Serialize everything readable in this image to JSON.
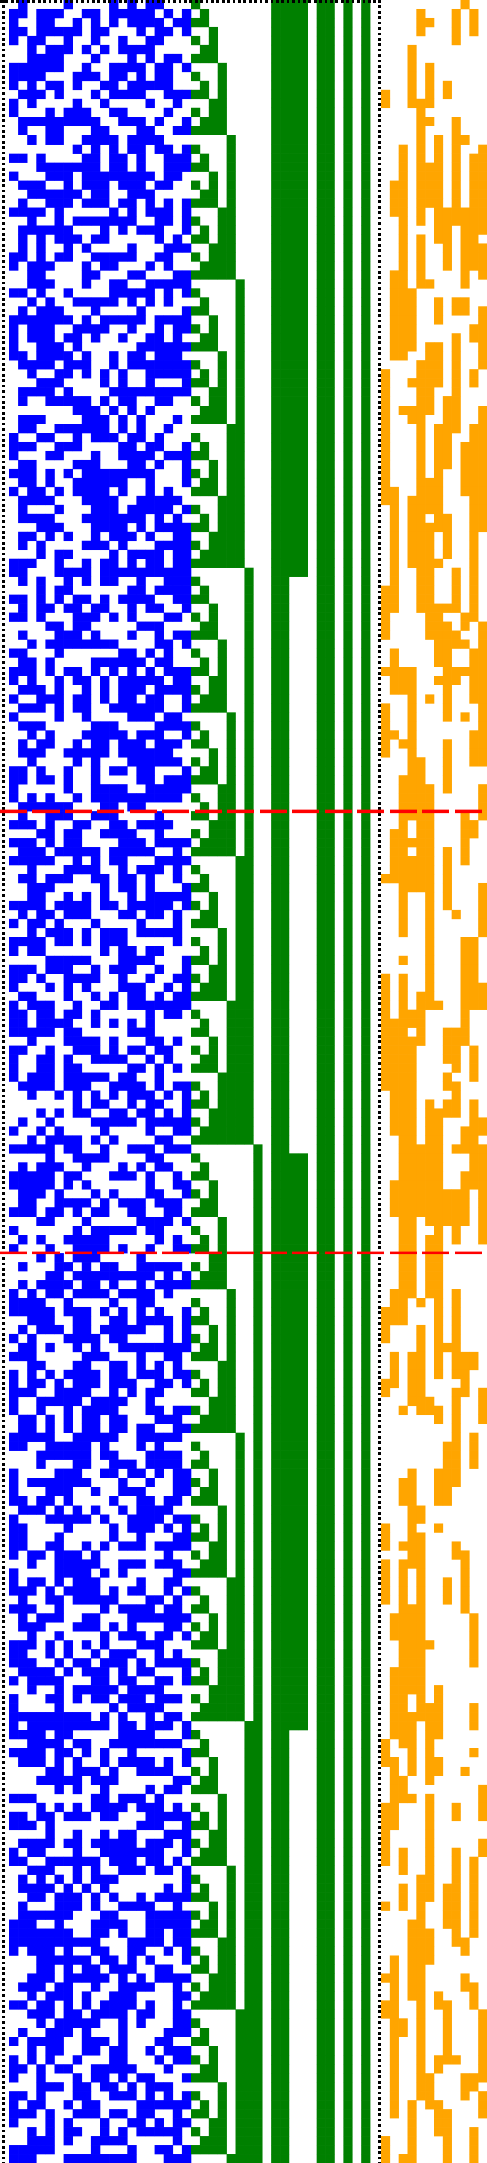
{
  "title": "",
  "colors": {
    "background": "#ffffff",
    "blue": "#0000ff",
    "green": "#008000",
    "orange": "#ffa500",
    "red": "#ff0000",
    "border": "#000000"
  },
  "grid": {
    "rows": 240
  },
  "markers": {
    "red_rows": [
      90,
      139
    ]
  },
  "panels": [
    "blue",
    "green",
    "orange"
  ]
}
